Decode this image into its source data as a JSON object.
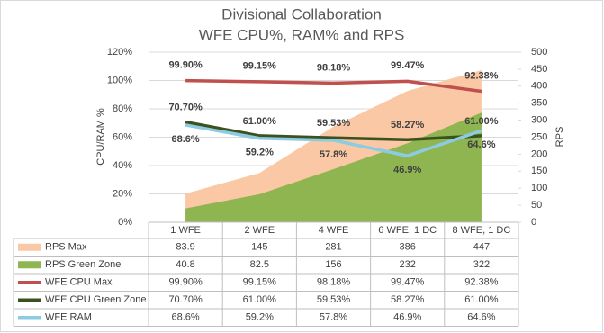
{
  "chart_data": {
    "type": "combo",
    "title": "Divisional Collaboration",
    "subtitle": "WFE CPU%, RAM% and RPS",
    "y_label": "CPU/RAM %",
    "y2_label": "RPS",
    "categories": [
      "1 WFE",
      "2 WFE",
      "4 WFE",
      "6 WFE, 1 DC",
      "8 WFE, 1 DC"
    ],
    "ylim": [
      0,
      120
    ],
    "yticks": [
      {
        "value": 0,
        "label": "0%"
      },
      {
        "value": 20,
        "label": "20%"
      },
      {
        "value": 40,
        "label": "40%"
      },
      {
        "value": 60,
        "label": "60%"
      },
      {
        "value": 80,
        "label": "80%"
      },
      {
        "value": 100,
        "label": "100%"
      },
      {
        "value": 120,
        "label": "120%"
      }
    ],
    "y2lim": [
      0,
      500
    ],
    "y2ticks": [
      0,
      50,
      100,
      150,
      200,
      250,
      300,
      350,
      400,
      450,
      500
    ],
    "grid": true,
    "series": [
      {
        "name": "RPS Max",
        "type": "area",
        "axis": "y2",
        "color": "#fac8a4",
        "values": [
          83.9,
          145,
          281,
          386,
          447
        ]
      },
      {
        "name": "RPS Green Zone",
        "type": "area",
        "axis": "y2",
        "color": "#8fb551",
        "values": [
          40.8,
          82.5,
          156,
          232,
          322
        ]
      },
      {
        "name": "WFE CPU Max",
        "type": "line",
        "color": "#c0504d",
        "values": [
          99.9,
          99.15,
          98.18,
          99.47,
          92.38
        ],
        "value_labels": [
          "99.90%",
          "99.15%",
          "98.18%",
          "99.47%",
          "92.38%"
        ]
      },
      {
        "name": "WFE CPU Green Zone",
        "type": "line",
        "color": "#3b5220",
        "values": [
          70.7,
          61,
          59.53,
          58.27,
          61
        ],
        "value_labels": [
          "70.70%",
          "61.00%",
          "59.53%",
          "58.27%",
          "61.00%"
        ]
      },
      {
        "name": "WFE RAM",
        "type": "line",
        "color": "#8ccbe2",
        "values": [
          68.6,
          59.2,
          57.8,
          46.9,
          64.6
        ],
        "value_labels": [
          "68.6%",
          "59.2%",
          "57.8%",
          "46.9%",
          "64.6%"
        ]
      }
    ]
  }
}
